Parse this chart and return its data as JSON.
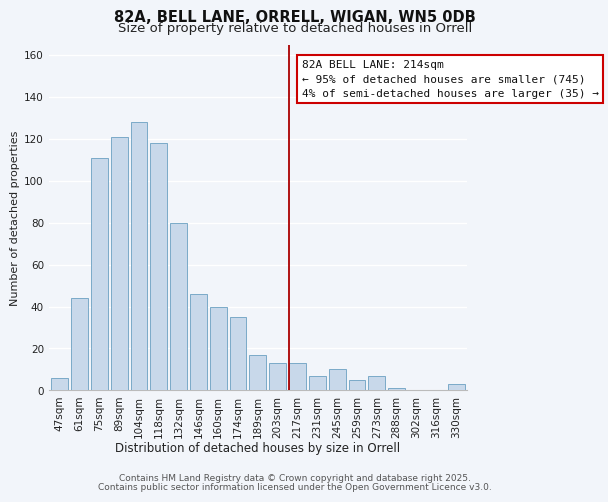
{
  "title": "82A, BELL LANE, ORRELL, WIGAN, WN5 0DB",
  "subtitle": "Size of property relative to detached houses in Orrell",
  "xlabel": "Distribution of detached houses by size in Orrell",
  "ylabel": "Number of detached properties",
  "bar_labels": [
    "47sqm",
    "61sqm",
    "75sqm",
    "89sqm",
    "104sqm",
    "118sqm",
    "132sqm",
    "146sqm",
    "160sqm",
    "174sqm",
    "189sqm",
    "203sqm",
    "217sqm",
    "231sqm",
    "245sqm",
    "259sqm",
    "273sqm",
    "288sqm",
    "302sqm",
    "316sqm",
    "330sqm"
  ],
  "bar_values": [
    6,
    44,
    111,
    121,
    128,
    118,
    80,
    46,
    40,
    35,
    17,
    13,
    13,
    7,
    10,
    5,
    7,
    1,
    0,
    0,
    3
  ],
  "bar_color": "#c8d8ea",
  "bar_edge_color": "#7aaac8",
  "vline_color": "#aa0000",
  "annotation_title": "82A BELL LANE: 214sqm",
  "annotation_line1": "← 95% of detached houses are smaller (745)",
  "annotation_line2": "4% of semi-detached houses are larger (35) →",
  "annotation_box_facecolor": "#ffffff",
  "annotation_box_edgecolor": "#cc0000",
  "ylim": [
    0,
    165
  ],
  "yticks": [
    0,
    20,
    40,
    60,
    80,
    100,
    120,
    140,
    160
  ],
  "footer1": "Contains HM Land Registry data © Crown copyright and database right 2025.",
  "footer2": "Contains public sector information licensed under the Open Government Licence v3.0.",
  "bg_color": "#f2f5fa",
  "plot_bg_color": "#f2f5fa",
  "grid_color": "#ffffff",
  "title_fontsize": 10.5,
  "subtitle_fontsize": 9.5,
  "xlabel_fontsize": 8.5,
  "ylabel_fontsize": 8,
  "tick_fontsize": 7.5,
  "annotation_fontsize": 8,
  "footer_fontsize": 6.5
}
